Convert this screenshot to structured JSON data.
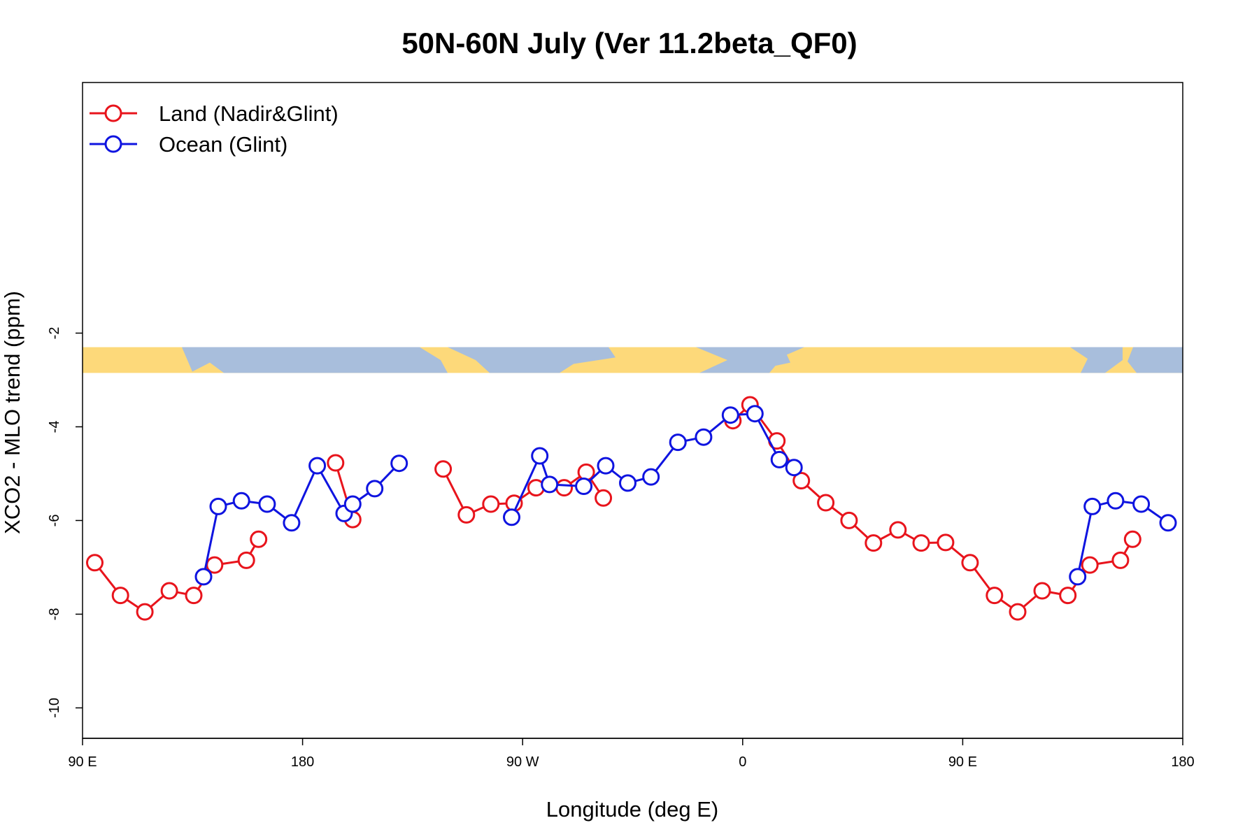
{
  "chart_data": {
    "type": "line",
    "title": "50N-60N July (Ver 11.2beta_QF0)",
    "xlabel": "Longitude (deg E)",
    "ylabel": "XCO2 - MLO trend (ppm)",
    "xlim": [
      90,
      540
    ],
    "ylim": [
      -10.65,
      3.35
    ],
    "x_ticks": [
      {
        "value": 90,
        "label": "90 E"
      },
      {
        "value": 180,
        "label": "180"
      },
      {
        "value": 270,
        "label": "90 W"
      },
      {
        "value": 360,
        "label": "0"
      },
      {
        "value": 450,
        "label": "90 E"
      },
      {
        "value": 540,
        "label": "180"
      }
    ],
    "y_ticks": [
      {
        "value": -2,
        "label": "-2"
      },
      {
        "value": -4,
        "label": "-4"
      },
      {
        "value": -6,
        "label": "-6"
      },
      {
        "value": -8,
        "label": "-8"
      },
      {
        "value": -10,
        "label": "-10"
      }
    ],
    "legend_position": "top-left",
    "background_strip": {
      "type": "world-map-band",
      "y_range": [
        -2.85,
        -2.3
      ],
      "land_color": "#fdd97a",
      "ocean_color": "#a8bedc"
    },
    "series": [
      {
        "name": "Land (Nadir&Glint)",
        "color": "#e8141c",
        "marker": "open-circle",
        "segments": [
          [
            [
              95,
              -6.9
            ],
            [
              105.5,
              -7.6
            ],
            [
              115.5,
              -7.95
            ],
            [
              125.5,
              -7.5
            ],
            [
              135.5,
              -7.6
            ],
            [
              144,
              -6.95
            ],
            [
              157,
              -6.85
            ],
            [
              162,
              -6.4
            ]
          ],
          [
            [
              193.5,
              -4.77
            ],
            [
              200.5,
              -5.98
            ]
          ],
          [
            [
              237.5,
              -4.9
            ],
            [
              247,
              -5.88
            ],
            [
              257,
              -5.65
            ],
            [
              266.5,
              -5.63
            ],
            [
              275.5,
              -5.3
            ],
            [
              287,
              -5.3
            ],
            [
              296,
              -4.97
            ],
            [
              303,
              -5.52
            ]
          ],
          [
            [
              356,
              -3.87
            ],
            [
              363,
              -3.53
            ],
            [
              374,
              -4.3
            ],
            [
              384,
              -5.15
            ],
            [
              394,
              -5.62
            ],
            [
              403.5,
              -6.0
            ],
            [
              413.5,
              -6.48
            ],
            [
              423.5,
              -6.2
            ],
            [
              433,
              -6.48
            ],
            [
              443,
              -6.47
            ],
            [
              453,
              -6.9
            ],
            [
              463,
              -7.6
            ],
            [
              472.5,
              -7.95
            ],
            [
              482.5,
              -7.5
            ],
            [
              493,
              -7.6
            ],
            [
              502,
              -6.95
            ],
            [
              514.5,
              -6.85
            ],
            [
              519.5,
              -6.4
            ]
          ]
        ]
      },
      {
        "name": "Ocean (Glint)",
        "color": "#0f14e0",
        "marker": "open-circle",
        "segments": [
          [
            [
              139.5,
              -7.2
            ],
            [
              145.5,
              -5.7
            ],
            [
              155,
              -5.58
            ],
            [
              165.5,
              -5.65
            ],
            [
              175.5,
              -6.05
            ],
            [
              186,
              -4.83
            ],
            [
              197,
              -5.85
            ],
            [
              200.5,
              -5.65
            ],
            [
              209.5,
              -5.32
            ],
            [
              219.5,
              -4.78
            ]
          ],
          [
            [
              265.5,
              -5.93
            ],
            [
              277,
              -4.62
            ],
            [
              281,
              -5.23
            ],
            [
              295,
              -5.27
            ],
            [
              304,
              -4.83
            ],
            [
              313,
              -5.2
            ],
            [
              322.5,
              -5.07
            ],
            [
              333.5,
              -4.33
            ],
            [
              344,
              -4.22
            ],
            [
              355,
              -3.75
            ],
            [
              365,
              -3.72
            ],
            [
              375,
              -4.7
            ],
            [
              381,
              -4.87
            ]
          ],
          [
            [
              497,
              -7.2
            ],
            [
              503,
              -5.7
            ],
            [
              512.5,
              -5.58
            ],
            [
              523,
              -5.65
            ],
            [
              534,
              -6.05
            ]
          ]
        ]
      }
    ]
  }
}
